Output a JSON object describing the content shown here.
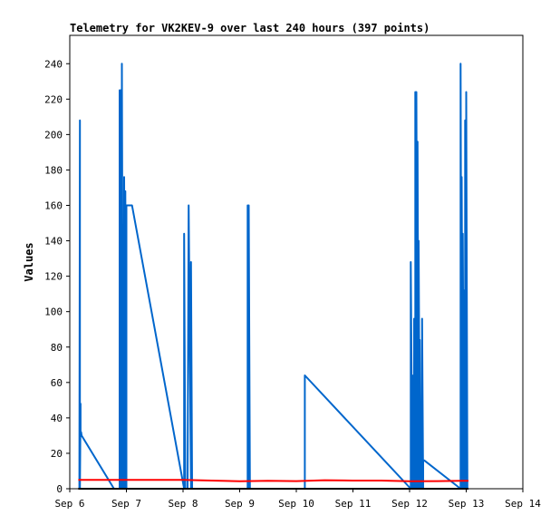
{
  "chart_data": {
    "type": "line",
    "title": "Telemetry for VK2KEV-9 over last 240 hours (397 points)",
    "xlabel": "",
    "ylabel": "Values",
    "x_ticks": [
      "Sep 6",
      "Sep 7",
      "Sep 8",
      "Sep 9",
      "Sep 10",
      "Sep 11",
      "Sep 12",
      "Sep 13",
      "Sep 14"
    ],
    "y_ticks": [
      "0",
      "20",
      "40",
      "60",
      "80",
      "100",
      "120",
      "140",
      "160",
      "180",
      "200",
      "220",
      "240"
    ],
    "xlim": [
      6,
      14
    ],
    "ylim": [
      0,
      256
    ],
    "grid": false,
    "legend": "none",
    "colors": {
      "blue": "#0066cc",
      "red": "#ff0000",
      "black": "#000000"
    },
    "series": [
      {
        "key": "blue",
        "x": [
          6.17,
          6.18,
          6.18,
          6.19,
          6.19,
          6.2,
          6.2,
          6.21,
          6.78,
          6.88,
          6.88,
          6.9,
          6.9,
          6.92,
          6.92,
          6.94,
          6.94,
          6.96,
          6.96,
          6.98,
          6.98,
          7.0,
          7.0,
          7.02,
          7.02,
          7.04,
          7.04,
          7.06,
          7.06,
          7.08,
          7.08,
          7.1,
          7.1,
          8.02,
          8.02,
          8.04,
          8.04,
          8.08,
          8.1,
          8.14,
          8.14,
          8.16,
          8.16,
          9.14,
          9.14,
          9.16,
          9.16,
          9.18,
          9.18,
          10.15,
          10.15,
          12.02,
          12.02,
          12.05,
          12.05,
          12.08,
          12.08,
          12.1,
          12.1,
          12.12,
          12.12,
          12.14,
          12.14,
          12.16,
          12.16,
          12.18,
          12.18,
          12.2,
          12.2,
          12.22,
          12.22,
          12.24,
          12.24,
          12.26,
          12.26,
          12.9,
          12.9,
          12.92,
          12.92,
          12.94,
          12.94,
          12.96,
          12.96,
          12.98,
          12.98,
          13.0,
          13.0,
          13.02,
          13.02,
          13.04,
          13.04
        ],
        "y": [
          0,
          208,
          0,
          48,
          32,
          32,
          32,
          30,
          0,
          0,
          225,
          0,
          225,
          0,
          240,
          0,
          88,
          0,
          176,
          0,
          168,
          0,
          160,
          160,
          160,
          160,
          160,
          160,
          160,
          160,
          160,
          160,
          160,
          0,
          144,
          0,
          0,
          0,
          160,
          0,
          128,
          0,
          0,
          0,
          160,
          0,
          160,
          0,
          0,
          0,
          64,
          0,
          128,
          0,
          64,
          0,
          96,
          0,
          224,
          0,
          224,
          0,
          196,
          0,
          140,
          0,
          84,
          0,
          48,
          0,
          96,
          0,
          16,
          16,
          16,
          0,
          240,
          0,
          176,
          0,
          144,
          0,
          112,
          0,
          208,
          0,
          224,
          0,
          0,
          0,
          0
        ]
      },
      {
        "key": "red",
        "x": [
          6.15,
          6.6,
          7.0,
          7.5,
          8.0,
          8.5,
          9.0,
          9.5,
          10.0,
          10.5,
          11.0,
          11.5,
          12.0,
          12.5,
          13.0,
          13.04
        ],
        "y": [
          5,
          5,
          5,
          5,
          5,
          4.6,
          4.2,
          4.5,
          4.3,
          4.8,
          4.6,
          4.6,
          4.2,
          4.3,
          4.5,
          4.5
        ]
      },
      {
        "key": "black",
        "x": [
          6.15,
          13.04
        ],
        "y": [
          0,
          0
        ]
      }
    ]
  }
}
